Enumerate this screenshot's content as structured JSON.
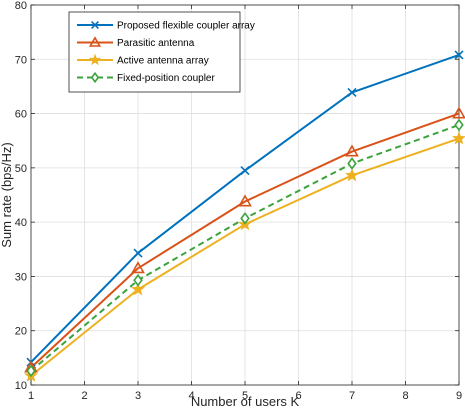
{
  "chart_data": {
    "type": "line",
    "title": "",
    "xlabel": "Number of users K",
    "ylabel": "Sum rate (bps/Hz)",
    "xlim": [
      1,
      9
    ],
    "ylim": [
      10,
      80
    ],
    "xticks": [
      1,
      2,
      3,
      4,
      5,
      6,
      7,
      8,
      9
    ],
    "yticks": [
      10,
      20,
      30,
      40,
      50,
      60,
      70,
      80
    ],
    "grid": true,
    "legend_position": "top-left",
    "x": [
      1,
      3,
      5,
      7,
      9
    ],
    "series": [
      {
        "name": "Proposed flexible coupler array",
        "values": [
          14.2,
          34.3,
          49.5,
          63.9,
          70.8
        ],
        "color": "#0072BD",
        "marker": "x",
        "linestyle": "solid"
      },
      {
        "name": "Parasitic antenna",
        "values": [
          13.2,
          31.5,
          43.8,
          53.0,
          60.0
        ],
        "color": "#D95319",
        "marker": "triangle",
        "linestyle": "solid"
      },
      {
        "name": "Active antenna array",
        "values": [
          11.7,
          27.6,
          39.6,
          48.6,
          55.4
        ],
        "color": "#EDB120",
        "marker": "star",
        "linestyle": "solid"
      },
      {
        "name": "Fixed-position coupler",
        "values": [
          12.6,
          29.3,
          40.7,
          50.8,
          57.9
        ],
        "color": "#3CA33C",
        "marker": "diamond",
        "linestyle": "dashed"
      }
    ]
  }
}
